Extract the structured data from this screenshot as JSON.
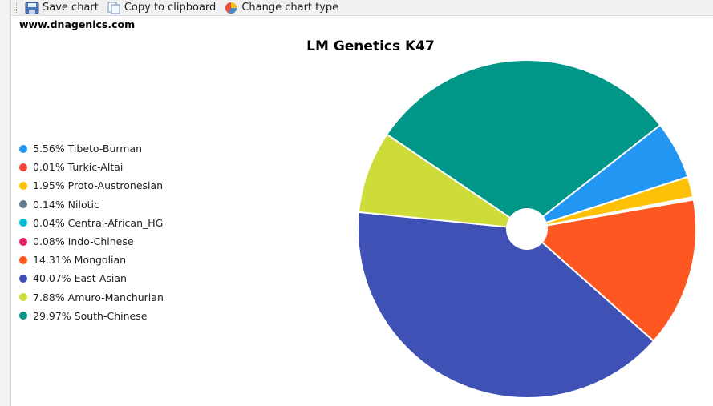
{
  "toolbar": {
    "save_label": "Save chart",
    "copy_label": "Copy to clipboard",
    "change_label": "Change chart type"
  },
  "site": "www.dnagenics.com",
  "chart_data": {
    "type": "pie",
    "title": "LM Genetics K47",
    "legend_position": "left",
    "slices": [
      {
        "label": "Tibeto-Burman",
        "value": 5.56,
        "display": "5.56% Tibeto-Burman",
        "color": "#2196f3"
      },
      {
        "label": "Turkic-Altai",
        "value": 0.01,
        "display": "0.01% Turkic-Altai",
        "color": "#f44336"
      },
      {
        "label": "Proto-Austronesian",
        "value": 1.95,
        "display": "1.95% Proto-Austronesian",
        "color": "#ffc107"
      },
      {
        "label": "Nilotic",
        "value": 0.14,
        "display": "0.14% Nilotic",
        "color": "#607d8b"
      },
      {
        "label": "Central-African_HG",
        "value": 0.04,
        "display": "0.04% Central-African_HG",
        "color": "#00bcd4"
      },
      {
        "label": "Indo-Chinese",
        "value": 0.08,
        "display": "0.08% Indo-Chinese",
        "color": "#e91e63"
      },
      {
        "label": "Mongolian",
        "value": 14.31,
        "display": "14.31% Mongolian",
        "color": "#ff5722"
      },
      {
        "label": "East-Asian",
        "value": 40.07,
        "display": "40.07% East-Asian",
        "color": "#3f51b5"
      },
      {
        "label": "Amuro-Manchurian",
        "value": 7.88,
        "display": "7.88% Amuro-Manchurian",
        "color": "#cddc39"
      },
      {
        "label": "South-Chinese",
        "value": 29.97,
        "display": "29.97% South-Chinese",
        "color": "#009688"
      }
    ]
  }
}
